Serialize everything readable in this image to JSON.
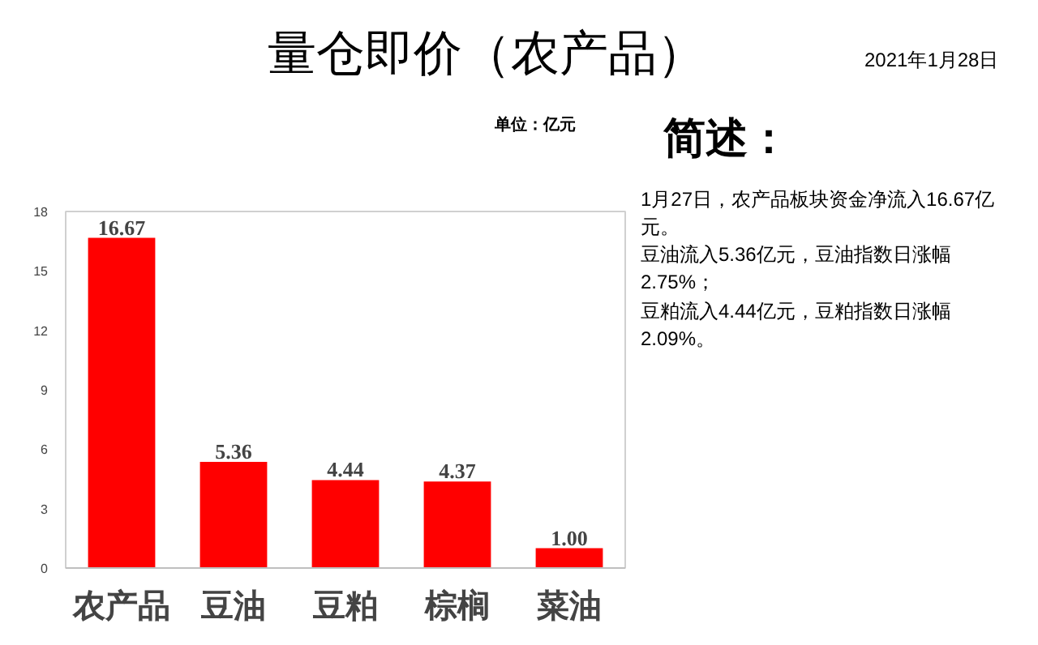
{
  "chart_data": {
    "type": "bar",
    "title": "量仓即价（农产品）",
    "subtitle": "2021年1月28日",
    "categories": [
      "农产品",
      "豆油",
      "豆粕",
      "棕榈",
      "菜油"
    ],
    "values": [
      16.67,
      5.36,
      4.44,
      4.37,
      1.0
    ],
    "value_labels": [
      "16.67",
      "5.36",
      "4.44",
      "4.37",
      "1.00"
    ],
    "color": "#ff0000",
    "ylim": [
      0,
      18
    ],
    "yticks": [
      0,
      3,
      6,
      9,
      12,
      15,
      18
    ],
    "grid": false,
    "annotations": [
      "单位：亿元",
      "简述：",
      "1月27日，农产品板块资金净流入16.67亿元。",
      "豆油流入5.36亿元，豆油指数日涨幅2.75%；",
      "豆粕流入4.44亿元，豆粕指数日涨幅2.09%。"
    ]
  }
}
